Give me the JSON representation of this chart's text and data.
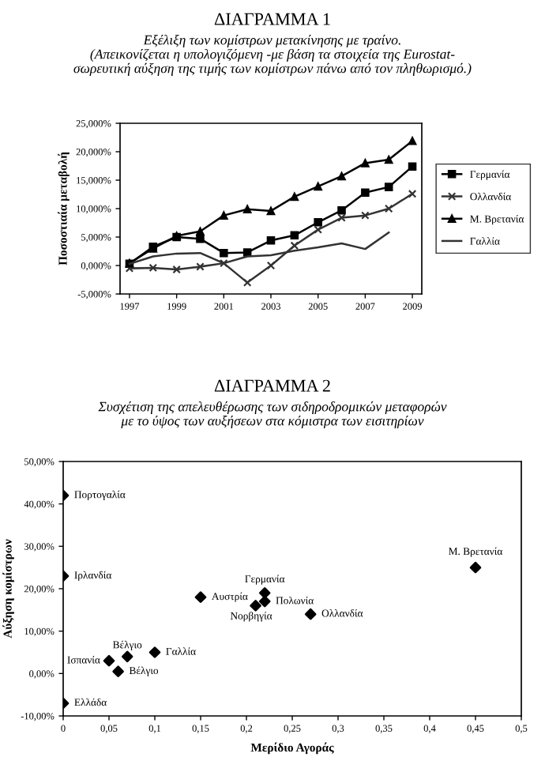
{
  "chart_data": [
    {
      "type": "line",
      "title": "ΔΙΑΓΡΑΜΜΑ 1",
      "subtitle": "Εξέλιξη των κομίστρων μετακίνησης με τραίνο.\n(Απεικονίζεται η υπολογιζόμενη -με βάση τα στοιχεία της Eurostat-\nσωρευτική αύξηση της τιμής των κομίστρων πάνω από τον πληθωρισμό.)",
      "ylabel": "Ποσοστιαία μεταβολή",
      "x": [
        1997,
        1998,
        1999,
        2000,
        2001,
        2002,
        2003,
        2004,
        2005,
        2006,
        2007,
        2008,
        2009
      ],
      "series": [
        {
          "name": "Γερμανία",
          "color": "#000000",
          "marker": "square",
          "values": [
            0.3,
            3.3,
            5.0,
            4.7,
            2.2,
            2.3,
            4.4,
            5.3,
            7.6,
            9.7,
            12.8,
            13.8,
            17.4
          ]
        },
        {
          "name": "Ολλανδία",
          "color": "#333333",
          "marker": "cross",
          "values": [
            -0.5,
            -0.4,
            -0.7,
            -0.2,
            0.4,
            -3.0,
            0.0,
            3.5,
            6.3,
            8.4,
            8.8,
            10.0,
            12.6
          ]
        },
        {
          "name": "Μ. Βρετανία",
          "color": "#000000",
          "marker": "triangle",
          "values": [
            0.4,
            3.0,
            5.2,
            6.0,
            8.8,
            9.9,
            9.6,
            12.1,
            13.9,
            15.7,
            18.0,
            18.6,
            21.9
          ]
        },
        {
          "name": "Γαλλία",
          "color": "#333333",
          "marker": "none",
          "values": [
            0.3,
            1.6,
            2.1,
            2.2,
            0.4,
            1.6,
            1.8,
            2.6,
            3.2,
            3.9,
            2.9,
            5.8,
            null
          ]
        }
      ],
      "xlim": [
        1996.6,
        2009.4
      ],
      "xticks": [
        1997,
        1999,
        2001,
        2003,
        2005,
        2007,
        2009
      ],
      "ylim": [
        -5,
        25
      ],
      "yticks": [
        {
          "value": -5,
          "label": "-5,000%"
        },
        {
          "value": 0,
          "label": "0,000%"
        },
        {
          "value": 5,
          "label": "5,000%"
        },
        {
          "value": 10,
          "label": "10,000%"
        },
        {
          "value": 15,
          "label": "15,000%"
        },
        {
          "value": 20,
          "label": "20,000%"
        },
        {
          "value": 25,
          "label": "25,000%"
        }
      ],
      "legend": "right",
      "grid": false,
      "line_style": "solid"
    },
    {
      "type": "scatter",
      "title": "ΔΙΑΓΡΑΜΜΑ 2",
      "subtitle": "Συσχέτιση της απελευθέρωσης των σιδηροδρομικών μεταφορών\nμε το ύψος των αυξήσεων στα κόμιστρα των εισιτηρίων",
      "xlabel": "Μερίδιο Αγοράς",
      "ylabel": "Αύξηση κομίστρων",
      "series": [
        {
          "color": "#000000",
          "marker": "diamond",
          "x": [
            0,
            0,
            0,
            0.05,
            0.06,
            0.07,
            0.1,
            0.15,
            0.22,
            0.22,
            0.21,
            0.27,
            0.45
          ],
          "values": [
            42,
            23,
            -7,
            3,
            0.5,
            4,
            5,
            18,
            19,
            17,
            16,
            14,
            25
          ]
        }
      ],
      "annotations": [
        {
          "text": "Πορτογαλία",
          "x": 0,
          "y": 42
        },
        {
          "text": "Ιρλανδία",
          "x": 0,
          "y": 23
        },
        {
          "text": "Ελλάδα",
          "x": 0,
          "y": -7
        },
        {
          "text": "Ισπανία",
          "x": 0.05,
          "y": 3
        },
        {
          "text": "Βέλγιο",
          "x": 0.06,
          "y": 0.5
        },
        {
          "text": "Βέλγιο",
          "x": 0.07,
          "y": 4
        },
        {
          "text": "Γαλλία",
          "x": 0.1,
          "y": 5
        },
        {
          "text": "Αυστρία",
          "x": 0.15,
          "y": 18
        },
        {
          "text": "Γερμανία",
          "x": 0.22,
          "y": 19
        },
        {
          "text": "Πολωνία",
          "x": 0.22,
          "y": 17
        },
        {
          "text": "Νορβηγία",
          "x": 0.21,
          "y": 16
        },
        {
          "text": "Ολλανδία",
          "x": 0.27,
          "y": 14
        },
        {
          "text": "Μ. Βρετανία",
          "x": 0.45,
          "y": 25
        }
      ],
      "xlim": [
        0,
        0.5
      ],
      "xticks": [
        0,
        {
          "value": 0.05,
          "label": "0,05"
        },
        {
          "value": 0.1,
          "label": "0,1"
        },
        {
          "value": 0.15,
          "label": "0,15"
        },
        {
          "value": 0.2,
          "label": "0,2"
        },
        {
          "value": 0.25,
          "label": "0,25"
        },
        {
          "value": 0.3,
          "label": "0,3"
        },
        {
          "value": 0.35,
          "label": "0,35"
        },
        {
          "value": 0.4,
          "label": "0,4"
        },
        {
          "value": 0.45,
          "label": "0,45"
        },
        {
          "value": 0.5,
          "label": "0,5"
        }
      ],
      "ylim": [
        -10,
        50
      ],
      "yticks": [
        {
          "value": -10,
          "label": "-10,00%"
        },
        {
          "value": 0,
          "label": "0,00%"
        },
        {
          "value": 10,
          "label": "10,00%"
        },
        {
          "value": 20,
          "label": "20,00%"
        },
        {
          "value": 30,
          "label": "30,00%"
        },
        {
          "value": 40,
          "label": "40,00%"
        },
        {
          "value": 50,
          "label": "50,00%"
        }
      ],
      "legend": false,
      "grid": false
    }
  ]
}
